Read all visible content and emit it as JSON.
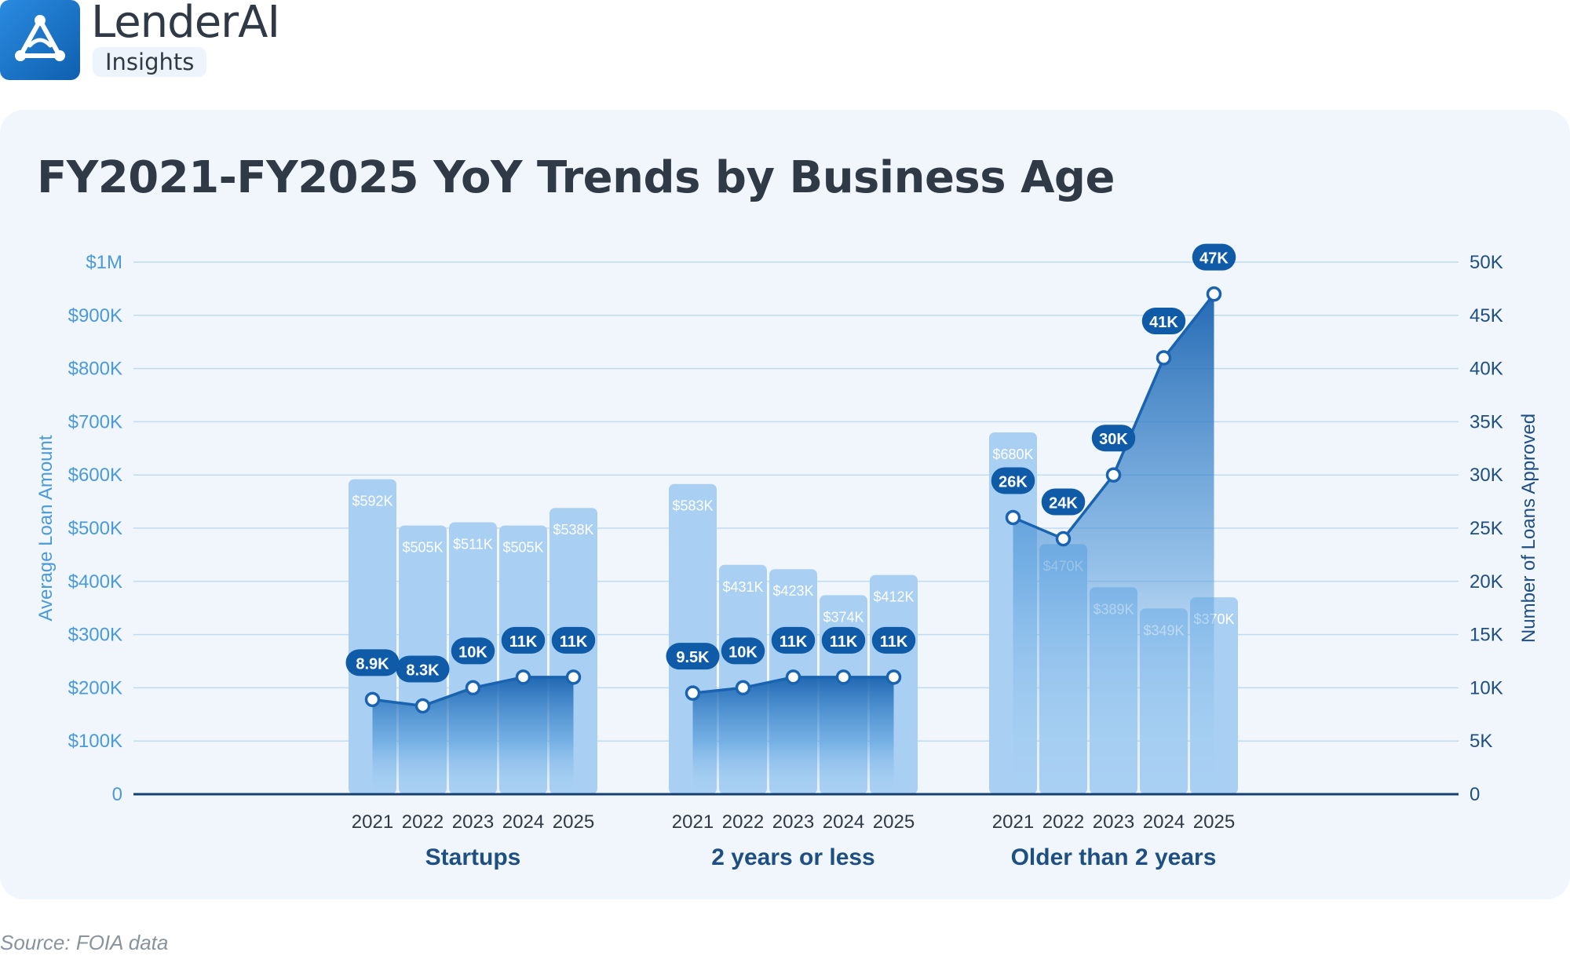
{
  "brand": {
    "name": "LenderAI",
    "subtitle": "Insights",
    "logo_icon": "triangle-nodes-icon",
    "accent_color": "#1a73c8"
  },
  "source": "Source: FOIA data",
  "colors": {
    "bar": "#a9d0f3",
    "line": "#1a63b0",
    "label_pill": "#0f5ba8",
    "axis_left_text": "#4a9ad9",
    "axis_right_text": "#1e4f82",
    "grid": "#bfdcf2",
    "baseline": "#153f6e"
  },
  "chart_data": {
    "type": "bar",
    "title": "FY2021-FY2025 YoY Trends by Business Age",
    "ylabel": "Average Loan Amount",
    "y2label": "Number of Loans Approved",
    "ylim": [
      0,
      1000000
    ],
    "y2lim": [
      0,
      50000
    ],
    "yticks": [
      "0",
      "$100K",
      "$200K",
      "$300K",
      "$400K",
      "$500K",
      "$600K",
      "$700K",
      "$800K",
      "$900K",
      "$1M"
    ],
    "y2ticks": [
      "0",
      "5K",
      "10K",
      "15K",
      "20K",
      "25K",
      "30K",
      "35K",
      "40K",
      "45K",
      "50K"
    ],
    "grid": true,
    "groups": [
      {
        "name": "Startups",
        "categories": [
          "2021",
          "2022",
          "2023",
          "2024",
          "2025"
        ],
        "bar_values": [
          592000,
          505000,
          511000,
          505000,
          538000
        ],
        "bar_labels": [
          "$592K",
          "$505K",
          "$511K",
          "$505K",
          "$538K"
        ],
        "line_values": [
          8900,
          8300,
          10000,
          11000,
          11000
        ],
        "line_labels": [
          "8.9K",
          "8.3K",
          "10K",
          "11K",
          "11K"
        ]
      },
      {
        "name": "2 years or less",
        "categories": [
          "2021",
          "2022",
          "2023",
          "2024",
          "2025"
        ],
        "bar_values": [
          583000,
          431000,
          423000,
          374000,
          412000
        ],
        "bar_labels": [
          "$583K",
          "$431K",
          "$423K",
          "$374K",
          "$412K"
        ],
        "line_values": [
          9500,
          10000,
          11000,
          11000,
          11000
        ],
        "line_labels": [
          "9.5K",
          "10K",
          "11K",
          "11K",
          "11K"
        ]
      },
      {
        "name": "Older than 2 years",
        "categories": [
          "2021",
          "2022",
          "2023",
          "2024",
          "2025"
        ],
        "bar_values": [
          680000,
          470000,
          389000,
          349000,
          370000
        ],
        "bar_labels": [
          "$680K",
          "$470K",
          "$389K",
          "$349K",
          "$370K"
        ],
        "line_values": [
          26000,
          24000,
          30000,
          41000,
          47000
        ],
        "line_labels": [
          "26K",
          "24K",
          "30K",
          "41K",
          "47K"
        ]
      }
    ]
  }
}
